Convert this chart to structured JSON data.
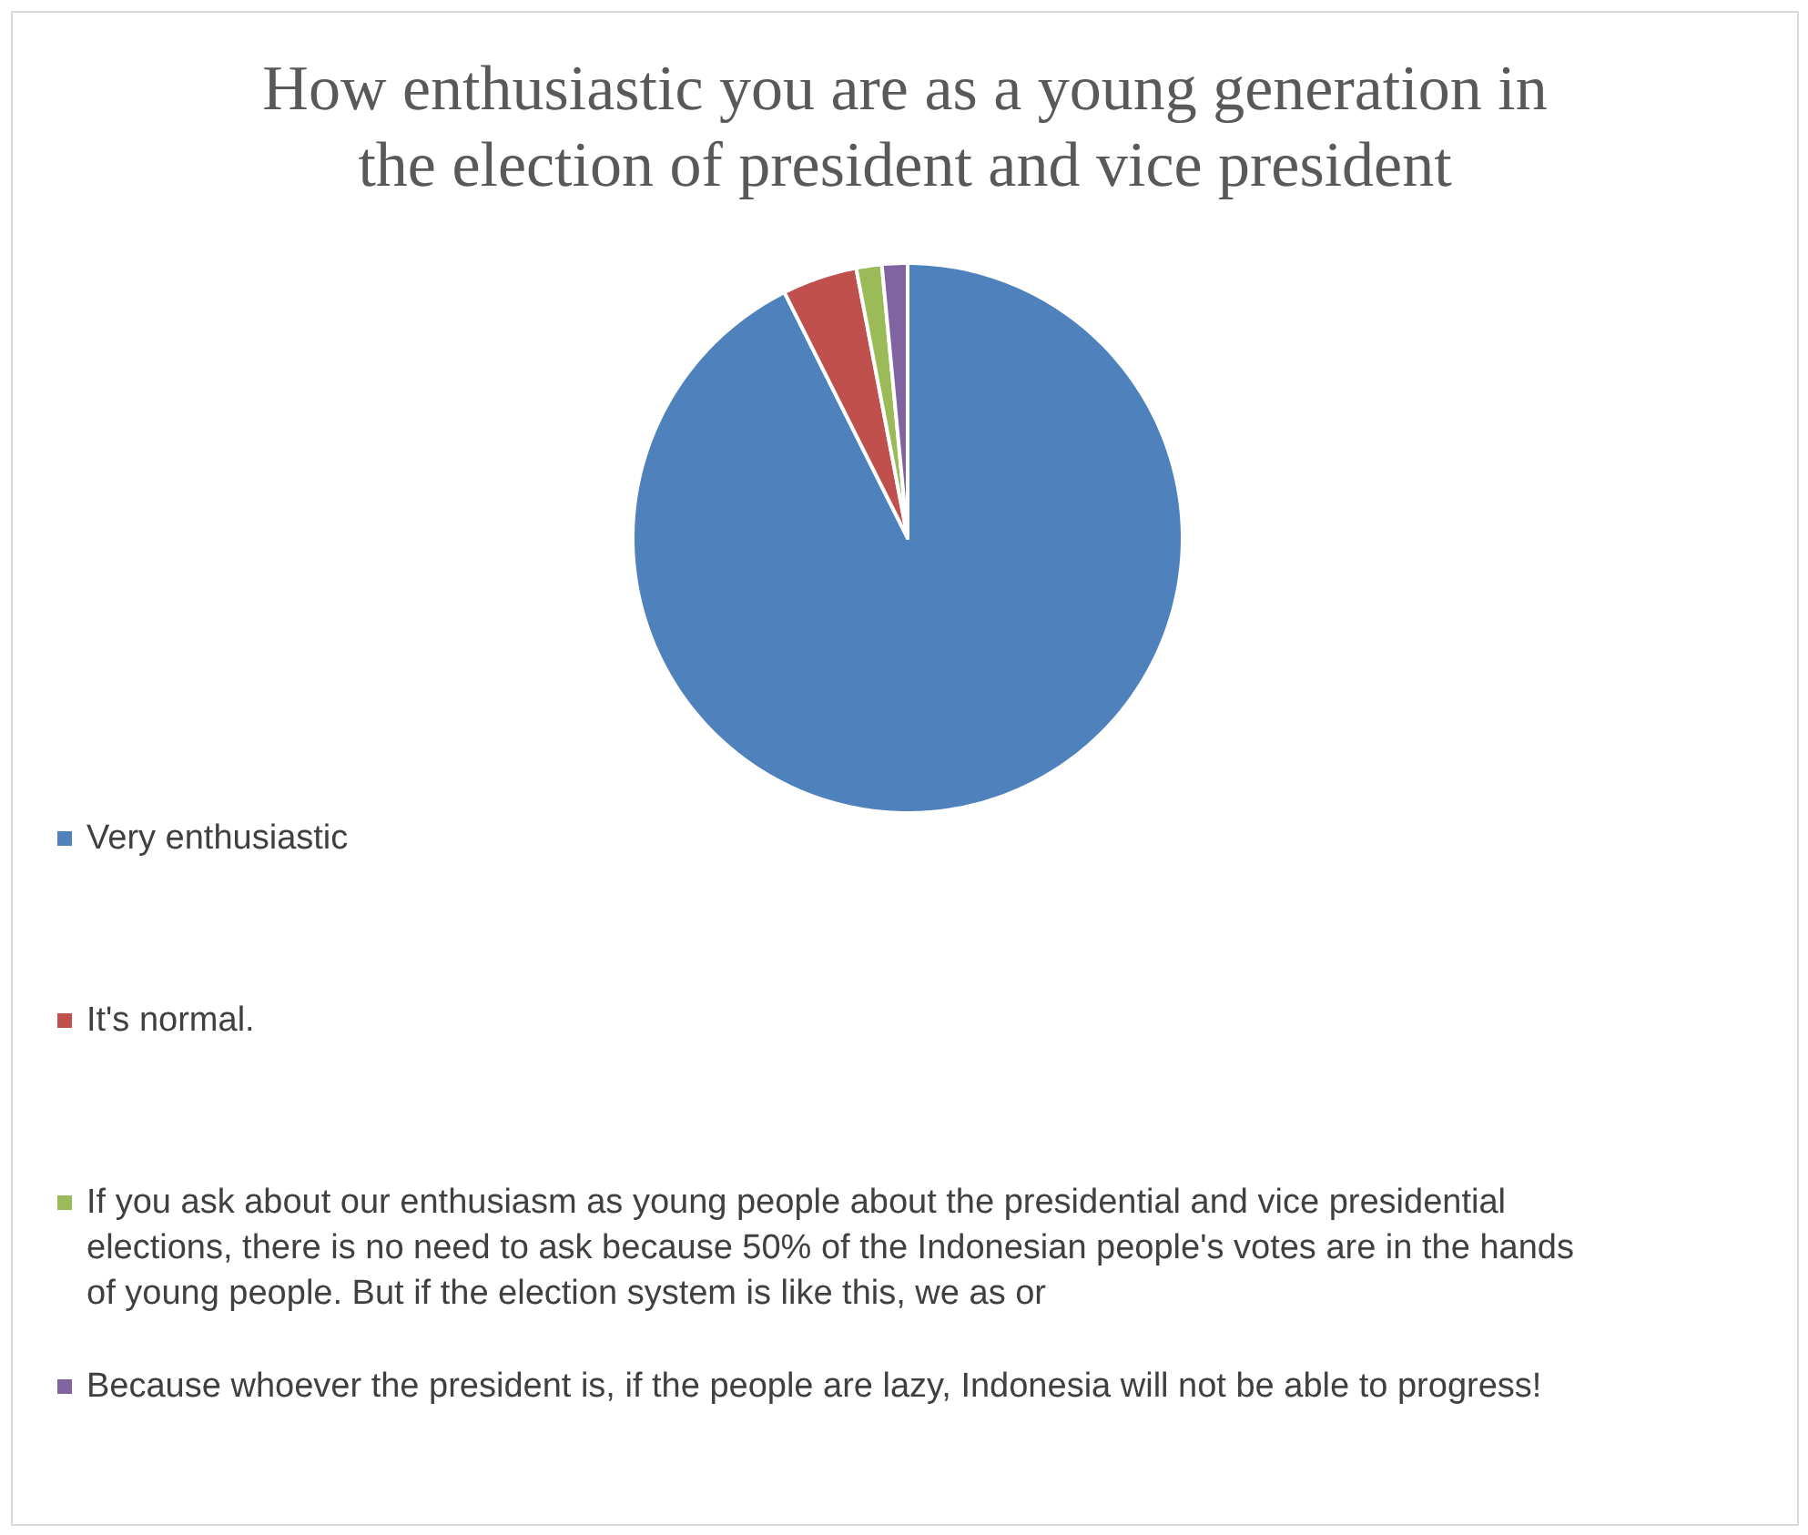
{
  "chart_data": {
    "type": "pie",
    "title": "How enthusiastic you are as a young generation in the election of president and vice president",
    "categories": [
      "Very enthusiastic",
      "It's normal.",
      "If you ask about our enthusiasm as young people about the presidential and vice presidential elections, there is no need to ask because 50% of the Indonesian people's votes are in the hands of young people. But if the election system is like this, we as or",
      "Because whoever the president is, if the people are lazy, Indonesia will not be able to progress!"
    ],
    "values": [
      92.6,
      4.4,
      1.5,
      1.5
    ],
    "colors": [
      "#4f81bd",
      "#c0504d",
      "#9bbb59",
      "#8064a2"
    ],
    "legend": "bottom"
  }
}
